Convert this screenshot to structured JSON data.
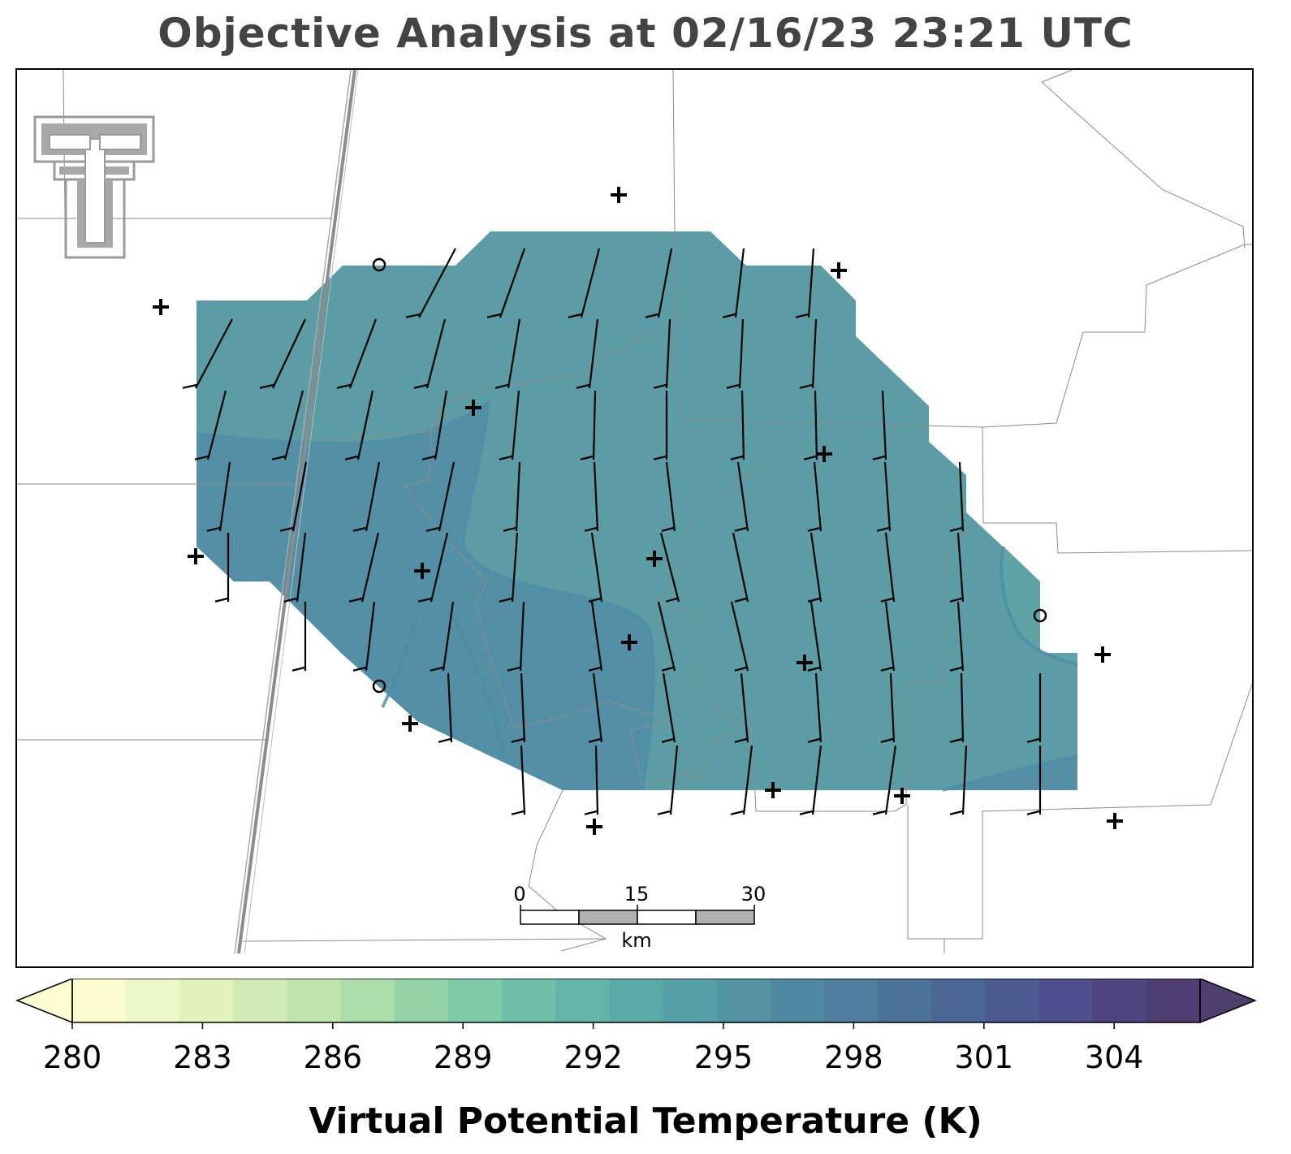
{
  "title": "Objective Analysis at 02/16/23 23:21 UTC",
  "colorbar": {
    "label": "Virtual Potential Temperature (K)",
    "ticks": [
      "280",
      "283",
      "286",
      "289",
      "292",
      "295",
      "298",
      "301",
      "304"
    ],
    "colors": [
      "#fafcd0",
      "#eef7c6",
      "#e1f2bd",
      "#d1ebb5",
      "#bfe4ae",
      "#aadca9",
      "#94d3a6",
      "#7fcaa6",
      "#6dc0a7",
      "#62b5a8",
      "#5aaaa8",
      "#559fa6",
      "#5294a4",
      "#4f89a1",
      "#4d7e9d",
      "#4b7299",
      "#4a6695",
      "#4b5a91",
      "#4d4e8c",
      "#4e4580",
      "#4e3f73"
    ],
    "under_color": "#fdfdd4",
    "over_color": "#4e3e6e"
  },
  "field_colors": {
    "main": "#5b9ca5",
    "warm": "#5490a5",
    "cool": "#5ea4a6"
  },
  "scale_bar": {
    "labels": [
      "0",
      "15",
      "30"
    ],
    "unit": "km"
  },
  "logo": {
    "name": "texas-tech-double-t-logo",
    "color": "#9a9a9a"
  }
}
